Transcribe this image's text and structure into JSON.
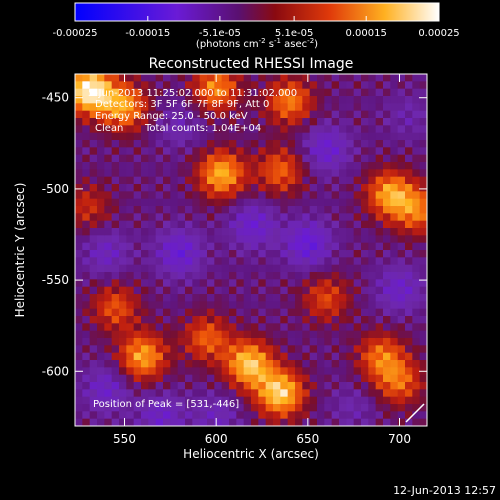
{
  "chart_data": {
    "type": "heatmap",
    "title": "Reconstructed RHESSI Image",
    "xlabel": "Heliocentric X (arcsec)",
    "ylabel": "Heliocentric Y (arcsec)",
    "xlim": [
      523,
      715
    ],
    "ylim": [
      -630,
      -437
    ],
    "xticks": [
      "550",
      "600",
      "650",
      "700"
    ],
    "xtick_values": [
      550,
      600,
      650,
      700
    ],
    "yticks": [
      "-450",
      "-500",
      "-550",
      "-600"
    ],
    "ytick_values": [
      -450,
      -500,
      -550,
      -600
    ],
    "colorbar": {
      "range": [
        -0.00025,
        0.00025
      ],
      "ticks": [
        "-0.00025",
        "-0.00015",
        "-5.1e-05",
        "5.1e-05",
        "0.00015",
        "0.00025"
      ],
      "tick_values": [
        -0.00025,
        -0.00015,
        -5.1e-05,
        5.1e-05,
        0.00015,
        0.00025
      ],
      "label": "(photons cm",
      "label_sup1": "-2",
      "label_mid": " s",
      "label_sup2": "-1",
      "label_end": " asec",
      "label_sup3": "-2",
      "label_close": ")"
    },
    "annotations": {
      "time_range": "5-Jun-2013 11:25:02.000 to 11:31:02.000",
      "detectors": "Detectors: 3F 5F 6F 7F 8F 9F, Att 0",
      "energy": "Energy Range: 25.0 - 50.0 keV",
      "clean": "Clean",
      "counts": "Total counts: 1.04E+04",
      "peak": "Position of Peak = [531,-446]"
    },
    "grid": false,
    "peak_position": [
      531,
      -446
    ],
    "hot_regions": [
      {
        "x": 531,
        "y": -446,
        "value": 0.00025
      },
      {
        "x": 550,
        "y": -455,
        "value": 0.00016
      },
      {
        "x": 600,
        "y": -445,
        "value": 0.00015
      },
      {
        "x": 640,
        "y": -452,
        "value": 0.00014
      },
      {
        "x": 603,
        "y": -492,
        "value": 0.00018
      },
      {
        "x": 635,
        "y": -490,
        "value": 0.00012
      },
      {
        "x": 695,
        "y": -503,
        "value": 0.00017
      },
      {
        "x": 710,
        "y": -512,
        "value": 0.00013
      },
      {
        "x": 560,
        "y": -592,
        "value": 0.00017
      },
      {
        "x": 618,
        "y": -596,
        "value": 0.0002
      },
      {
        "x": 635,
        "y": -612,
        "value": 0.00021
      },
      {
        "x": 595,
        "y": -582,
        "value": 0.00012
      },
      {
        "x": 545,
        "y": -565,
        "value": 0.00011
      },
      {
        "x": 690,
        "y": -592,
        "value": 0.00013
      },
      {
        "x": 700,
        "y": -606,
        "value": 0.00012
      },
      {
        "x": 660,
        "y": -560,
        "value": 0.0001
      },
      {
        "x": 530,
        "y": -510,
        "value": 8e-05
      }
    ],
    "cold_regions": [
      {
        "x": 580,
        "y": -535,
        "value": -0.0001
      },
      {
        "x": 620,
        "y": -520,
        "value": -9e-05
      },
      {
        "x": 650,
        "y": -530,
        "value": -0.00011
      },
      {
        "x": 660,
        "y": -478,
        "value": -9e-05
      },
      {
        "x": 700,
        "y": -555,
        "value": -8e-05
      },
      {
        "x": 540,
        "y": -610,
        "value": -8e-05
      },
      {
        "x": 570,
        "y": -625,
        "value": -8e-05
      },
      {
        "x": 600,
        "y": -625,
        "value": -6e-05
      },
      {
        "x": 540,
        "y": -535,
        "value": -7e-05
      },
      {
        "x": 580,
        "y": -465,
        "value": -5e-05
      },
      {
        "x": 675,
        "y": -620,
        "value": -4e-05
      },
      {
        "x": 705,
        "y": -460,
        "value": -4e-05
      }
    ]
  },
  "footer": {
    "timestamp": "12-Jun-2013 12:57"
  },
  "colors": {
    "background": "#000000",
    "text": "#ffffff",
    "colormap": [
      "#0000ff",
      "#6a1bd6",
      "#8040c0",
      "#7a1030",
      "#c81e10",
      "#ff6a00",
      "#ffc020",
      "#ffffff"
    ]
  }
}
